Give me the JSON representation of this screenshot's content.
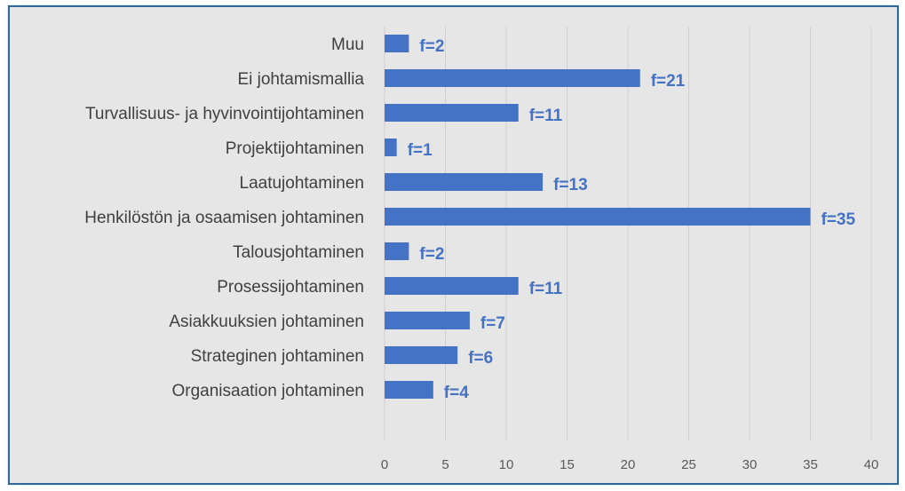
{
  "chart_data": {
    "type": "bar",
    "orientation": "horizontal",
    "title": "",
    "xlabel": "",
    "ylabel": "",
    "categories": [
      "Muu",
      "Ei johtamismallia",
      "Turvallisuus- ja hyvinvointijohtaminen",
      "Projektijohtaminen",
      "Laatujohtaminen",
      "Henkilöstön ja osaamisen johtaminen",
      "Talousjohtaminen",
      "Prosessijohtaminen",
      "Asiakkuuksien johtaminen",
      "Strateginen johtaminen",
      "Organisaation johtaminen"
    ],
    "values": [
      2,
      21,
      11,
      1,
      13,
      35,
      2,
      11,
      7,
      6,
      4
    ],
    "data_labels": [
      "f=2",
      "f=21",
      "f=11",
      "f=1",
      "f=13",
      "f=35",
      "f=2",
      "f=11",
      "f=7",
      "f=6",
      "f=4"
    ],
    "xlim": [
      0,
      40
    ],
    "xticks": [
      "0",
      "5",
      "10",
      "15",
      "20",
      "25",
      "30",
      "35",
      "40"
    ],
    "grid": true,
    "bar_color": "#4472c4",
    "background": "#e7e6e6",
    "border_color": "#2f6894"
  }
}
